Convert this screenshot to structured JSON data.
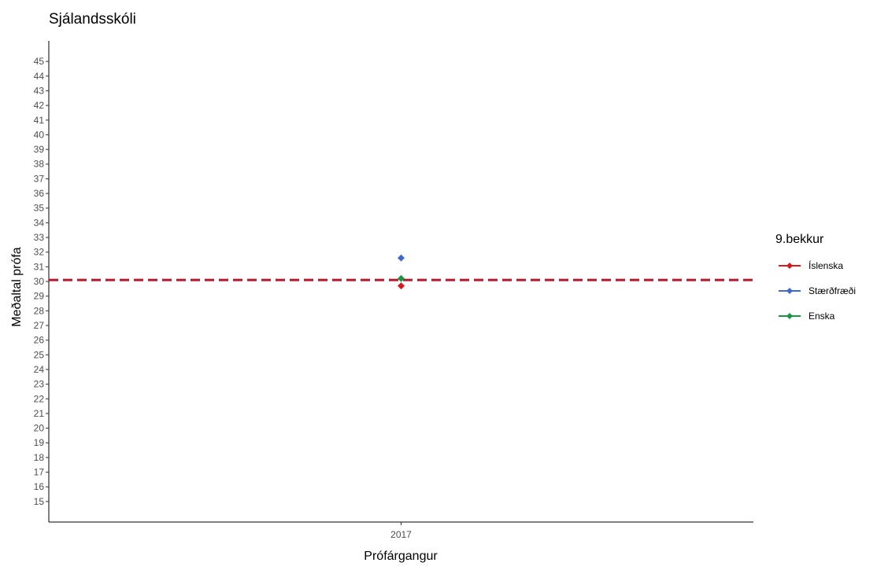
{
  "chart_data": {
    "type": "scatter",
    "title": "Sjálandsskóli",
    "xlabel": "Prófárgangur",
    "ylabel": "Meðaltal prófa",
    "categories": [
      "2017"
    ],
    "ylim": [
      13.6,
      46.4
    ],
    "yticks": [
      15,
      16,
      17,
      18,
      19,
      20,
      21,
      22,
      23,
      24,
      25,
      26,
      27,
      28,
      29,
      30,
      31,
      32,
      33,
      34,
      35,
      36,
      37,
      38,
      39,
      40,
      41,
      42,
      43,
      44,
      45
    ],
    "series": [
      {
        "name": "Íslenska",
        "color": "#d7191c",
        "values": [
          29.7
        ]
      },
      {
        "name": "Stærðfræði",
        "color": "#4169cd",
        "values": [
          31.6
        ]
      },
      {
        "name": "Enska",
        "color": "#1a9641",
        "values": [
          30.2
        ]
      }
    ],
    "reference_line": {
      "y": 30.1,
      "color": "#b2182b",
      "style": "dashed"
    },
    "legend": {
      "title": "9.bekkur",
      "position": "right"
    },
    "grid": false
  }
}
